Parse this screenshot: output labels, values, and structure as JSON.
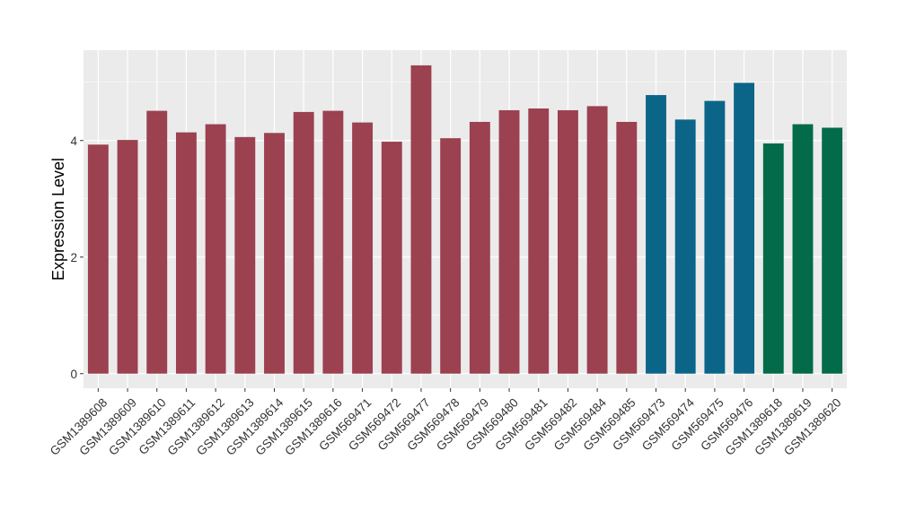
{
  "chart_data": {
    "type": "bar",
    "ylabel": "Expression Level",
    "xlabel": "",
    "ylim": [
      -0.25,
      5.55
    ],
    "yticks": [
      0,
      2,
      4
    ],
    "grid": true,
    "background": "#ebebeb",
    "categories": [
      "GSM1389608",
      "GSM1389609",
      "GSM1389610",
      "GSM1389611",
      "GSM1389612",
      "GSM1389613",
      "GSM1389614",
      "GSM1389615",
      "GSM1389616",
      "GSM569471",
      "GSM569472",
      "GSM569477",
      "GSM569478",
      "GSM569479",
      "GSM569480",
      "GSM569481",
      "GSM569482",
      "GSM569484",
      "GSM569485",
      "GSM569473",
      "GSM569474",
      "GSM569475",
      "GSM569476",
      "GSM1389618",
      "GSM1389619",
      "GSM1389620"
    ],
    "values": [
      3.93,
      4.01,
      4.51,
      4.14,
      4.28,
      4.06,
      4.13,
      4.49,
      4.51,
      4.31,
      3.98,
      5.29,
      4.04,
      4.32,
      4.52,
      4.55,
      4.52,
      4.59,
      4.32,
      4.78,
      4.36,
      4.68,
      4.99,
      3.95,
      4.28,
      4.22
    ],
    "bar_colors": [
      "#9b4150",
      "#9b4150",
      "#9b4150",
      "#9b4150",
      "#9b4150",
      "#9b4150",
      "#9b4150",
      "#9b4150",
      "#9b4150",
      "#9b4150",
      "#9b4150",
      "#9b4150",
      "#9b4150",
      "#9b4150",
      "#9b4150",
      "#9b4150",
      "#9b4150",
      "#9b4150",
      "#9b4150",
      "#0b6588",
      "#0b6588",
      "#0b6588",
      "#0b6588",
      "#036b49",
      "#036b49",
      "#036b49"
    ]
  }
}
